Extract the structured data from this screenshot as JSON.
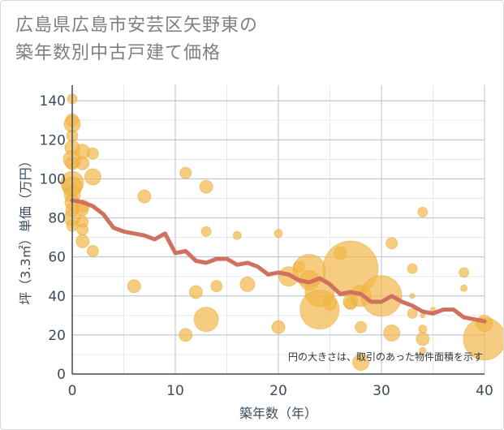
{
  "title_lines": [
    "広島県広島市安芸区矢野東の",
    "築年数別中古戸建て価格"
  ],
  "chart_data": {
    "type": "scatter",
    "xlabel": "築年数（年）",
    "ylabel": "坪（3.3㎡）単価（万円）",
    "xlim": [
      0,
      40
    ],
    "ylim": [
      0,
      148
    ],
    "xticks": [
      0,
      10,
      20,
      30,
      40
    ],
    "yticks": [
      0,
      20,
      40,
      60,
      80,
      100,
      120,
      140
    ],
    "grid": true,
    "annotation": "円の大きさは、取引のあった物件面積を示す",
    "colors": {
      "bubble": "#f2b544",
      "line": "#d0705e"
    },
    "series": [
      {
        "kind": "bubble",
        "points": [
          {
            "x": 0,
            "y": 141,
            "s": 6
          },
          {
            "x": 0,
            "y": 130,
            "s": 8
          },
          {
            "x": 0,
            "y": 128,
            "s": 10
          },
          {
            "x": 0,
            "y": 122,
            "s": 7
          },
          {
            "x": 0,
            "y": 116,
            "s": 9
          },
          {
            "x": 0,
            "y": 110,
            "s": 11
          },
          {
            "x": 0,
            "y": 108,
            "s": 8
          },
          {
            "x": 0,
            "y": 98,
            "s": 14
          },
          {
            "x": 0,
            "y": 96,
            "s": 12
          },
          {
            "x": 0,
            "y": 92,
            "s": 10
          },
          {
            "x": 0,
            "y": 88,
            "s": 9
          },
          {
            "x": 0,
            "y": 84,
            "s": 8
          },
          {
            "x": 0,
            "y": 80,
            "s": 10
          },
          {
            "x": 0,
            "y": 76,
            "s": 7
          },
          {
            "x": 1,
            "y": 114,
            "s": 9
          },
          {
            "x": 1,
            "y": 108,
            "s": 8
          },
          {
            "x": 1,
            "y": 86,
            "s": 8
          },
          {
            "x": 1,
            "y": 84,
            "s": 7
          },
          {
            "x": 1,
            "y": 78,
            "s": 7
          },
          {
            "x": 1,
            "y": 74,
            "s": 7
          },
          {
            "x": 1,
            "y": 68,
            "s": 8
          },
          {
            "x": 2,
            "y": 113,
            "s": 7
          },
          {
            "x": 2,
            "y": 101,
            "s": 10
          },
          {
            "x": 2,
            "y": 63,
            "s": 7
          },
          {
            "x": 6,
            "y": 45,
            "s": 8
          },
          {
            "x": 7,
            "y": 91,
            "s": 8
          },
          {
            "x": 11,
            "y": 103,
            "s": 7
          },
          {
            "x": 11,
            "y": 20,
            "s": 8
          },
          {
            "x": 12,
            "y": 42,
            "s": 8
          },
          {
            "x": 13,
            "y": 96,
            "s": 8
          },
          {
            "x": 13,
            "y": 73,
            "s": 6
          },
          {
            "x": 13,
            "y": 28,
            "s": 15
          },
          {
            "x": 14,
            "y": 45,
            "s": 7
          },
          {
            "x": 16,
            "y": 71,
            "s": 5
          },
          {
            "x": 17,
            "y": 46,
            "s": 9
          },
          {
            "x": 20,
            "y": 72,
            "s": 5
          },
          {
            "x": 20,
            "y": 24,
            "s": 8
          },
          {
            "x": 21,
            "y": 50,
            "s": 12
          },
          {
            "x": 22,
            "y": 55,
            "s": 7
          },
          {
            "x": 23,
            "y": 53,
            "s": 20
          },
          {
            "x": 23,
            "y": 48,
            "s": 12
          },
          {
            "x": 24,
            "y": 42,
            "s": 18
          },
          {
            "x": 24,
            "y": 33,
            "s": 24
          },
          {
            "x": 25,
            "y": 36,
            "s": 8
          },
          {
            "x": 26,
            "y": 62,
            "s": 8
          },
          {
            "x": 27,
            "y": 54,
            "s": 34
          },
          {
            "x": 27,
            "y": 37,
            "s": 9
          },
          {
            "x": 27,
            "y": 36,
            "s": 7
          },
          {
            "x": 28,
            "y": 40,
            "s": 13
          },
          {
            "x": 28,
            "y": 24,
            "s": 7
          },
          {
            "x": 28,
            "y": 6,
            "s": 10
          },
          {
            "x": 30,
            "y": 40,
            "s": 25
          },
          {
            "x": 31,
            "y": 67,
            "s": 7
          },
          {
            "x": 31,
            "y": 21,
            "s": 10
          },
          {
            "x": 33,
            "y": 54,
            "s": 6
          },
          {
            "x": 33,
            "y": 40,
            "s": 3
          },
          {
            "x": 33,
            "y": 31,
            "s": 6
          },
          {
            "x": 34,
            "y": 83,
            "s": 6
          },
          {
            "x": 34,
            "y": 30,
            "s": 3
          },
          {
            "x": 34,
            "y": 23,
            "s": 5
          },
          {
            "x": 34,
            "y": 18,
            "s": 8
          },
          {
            "x": 34,
            "y": 12,
            "s": 4
          },
          {
            "x": 35,
            "y": 33,
            "s": 3
          },
          {
            "x": 38,
            "y": 52,
            "s": 6
          },
          {
            "x": 38,
            "y": 44,
            "s": 4
          },
          {
            "x": 40,
            "y": 18,
            "s": 26
          },
          {
            "x": 40,
            "y": 26,
            "s": 10
          }
        ]
      },
      {
        "kind": "line",
        "points": [
          {
            "x": 0,
            "y": 89
          },
          {
            "x": 1,
            "y": 88
          },
          {
            "x": 2,
            "y": 86
          },
          {
            "x": 3,
            "y": 82
          },
          {
            "x": 4,
            "y": 75
          },
          {
            "x": 5,
            "y": 73
          },
          {
            "x": 6,
            "y": 72
          },
          {
            "x": 7,
            "y": 71
          },
          {
            "x": 8,
            "y": 69
          },
          {
            "x": 9,
            "y": 72
          },
          {
            "x": 10,
            "y": 62
          },
          {
            "x": 11,
            "y": 63
          },
          {
            "x": 12,
            "y": 58
          },
          {
            "x": 13,
            "y": 57
          },
          {
            "x": 14,
            "y": 59
          },
          {
            "x": 15,
            "y": 59
          },
          {
            "x": 16,
            "y": 56
          },
          {
            "x": 17,
            "y": 57
          },
          {
            "x": 18,
            "y": 55
          },
          {
            "x": 19,
            "y": 51
          },
          {
            "x": 20,
            "y": 52
          },
          {
            "x": 21,
            "y": 51
          },
          {
            "x": 22,
            "y": 48
          },
          {
            "x": 23,
            "y": 47
          },
          {
            "x": 24,
            "y": 49
          },
          {
            "x": 25,
            "y": 46
          },
          {
            "x": 26,
            "y": 41
          },
          {
            "x": 27,
            "y": 42
          },
          {
            "x": 28,
            "y": 41
          },
          {
            "x": 29,
            "y": 37
          },
          {
            "x": 30,
            "y": 37
          },
          {
            "x": 31,
            "y": 40
          },
          {
            "x": 32,
            "y": 37
          },
          {
            "x": 33,
            "y": 35
          },
          {
            "x": 34,
            "y": 32
          },
          {
            "x": 35,
            "y": 31
          },
          {
            "x": 36,
            "y": 33
          },
          {
            "x": 37,
            "y": 33
          },
          {
            "x": 38,
            "y": 29
          },
          {
            "x": 39,
            "y": 28
          },
          {
            "x": 40,
            "y": 27
          }
        ]
      }
    ]
  }
}
